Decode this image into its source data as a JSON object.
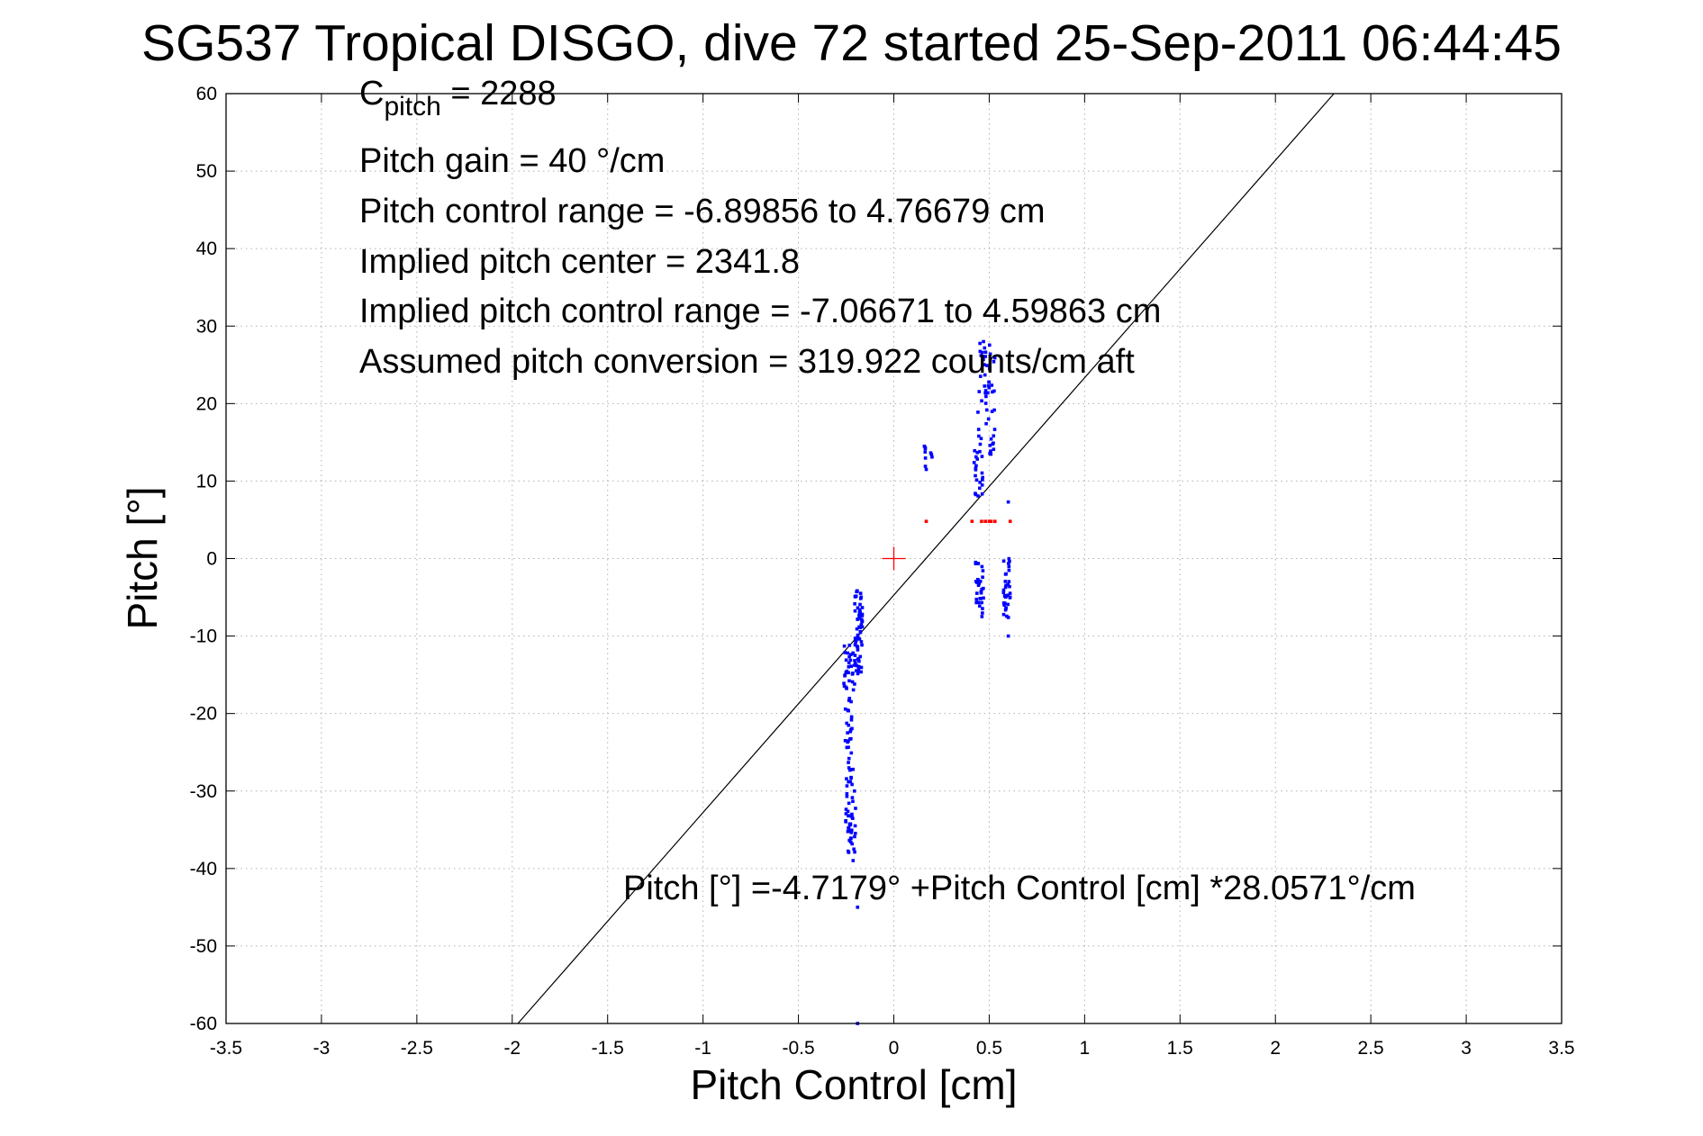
{
  "chart_data": {
    "type": "scatter",
    "title": "SG537 Tropical DISGO, dive 72 started 25-Sep-2011 06:44:45",
    "xlabel": "Pitch Control [cm]",
    "ylabel": "Pitch [°]",
    "xlim": [
      -3.5,
      3.5
    ],
    "ylim": [
      -60,
      60
    ],
    "xticks": [
      -3.5,
      -3,
      -2.5,
      -2,
      -1.5,
      -1,
      -0.5,
      0,
      0.5,
      1,
      1.5,
      2,
      2.5,
      3,
      3.5
    ],
    "xtick_labels": [
      "-3.5",
      "-3",
      "-2.5",
      "-2",
      "-1.5",
      "-1",
      "-0.5",
      "0",
      "0.5",
      "1",
      "1.5",
      "2",
      "2.5",
      "3",
      "3.5"
    ],
    "yticks": [
      -60,
      -50,
      -40,
      -30,
      -20,
      -10,
      0,
      10,
      20,
      30,
      40,
      50,
      60
    ],
    "ytick_labels": [
      "-60",
      "-50",
      "-40",
      "-30",
      "-20",
      "-10",
      "0",
      "10",
      "20",
      "30",
      "40",
      "50",
      "60"
    ],
    "grid": true,
    "annotations": {
      "c_pitch_prefix": "C",
      "c_pitch_sub": "pitch",
      "c_pitch_value": " = 2288",
      "lines": [
        "Pitch gain = 40 °/cm",
        "Pitch control range = -6.89856 to 4.76679 cm",
        "Implied pitch center = 2341.8",
        "Implied pitch control range = -7.06671 to 4.59863 cm",
        "Assumed pitch conversion = 319.922 counts/cm aft"
      ],
      "equation": "Pitch [°] =-4.7179° +Pitch Control [cm] *28.0571°/cm"
    },
    "fit_line": {
      "intercept": -4.7179,
      "slope": 28.0571,
      "color": "#000000"
    },
    "center_marker": {
      "x": 0,
      "y": 0,
      "color": "#ff0000"
    },
    "series": [
      {
        "color": "#0000ff",
        "clusters": [
          {
            "x_range": [
              -0.205,
              -0.165
            ],
            "y_range": [
              -15,
              -4
            ],
            "n": 60
          },
          {
            "x_range": [
              -0.265,
              -0.205
            ],
            "y_range": [
              -17,
              -11
            ],
            "n": 30
          },
          {
            "x_range": [
              -0.255,
              -0.215
            ],
            "y_range": [
              -37,
              -18
            ],
            "n": 50
          },
          {
            "x_range": [
              -0.24,
              -0.2
            ],
            "y_range": [
              -39,
              -27
            ],
            "n": 25
          },
          {
            "x_range": [
              0.42,
              0.47
            ],
            "y_range": [
              -7.5,
              0
            ],
            "n": 30
          },
          {
            "x_range": [
              0.575,
              0.61
            ],
            "y_range": [
              -8,
              0
            ],
            "n": 35
          },
          {
            "x_range": [
              0.42,
              0.47
            ],
            "y_range": [
              8,
              14
            ],
            "n": 20
          },
          {
            "x_range": [
              0.44,
              0.535
            ],
            "y_range": [
              13,
              28
            ],
            "n": 55
          },
          {
            "x_range": [
              0.155,
              0.205
            ],
            "y_range": [
              11.5,
              14.5
            ],
            "n": 8
          }
        ],
        "points": [
          [
            -0.19,
            -60
          ],
          [
            -0.19,
            -45
          ],
          [
            0.6,
            7.3
          ],
          [
            0.6,
            -10
          ],
          [
            0.47,
            28
          ],
          [
            0.16,
            14.5
          ],
          [
            0.17,
            11.5
          ]
        ]
      },
      {
        "color": "#ff0000",
        "points": [
          [
            0.17,
            4.8
          ],
          [
            0.41,
            4.8
          ],
          [
            0.46,
            4.8
          ],
          [
            0.48,
            4.8
          ],
          [
            0.5,
            4.8
          ],
          [
            0.51,
            4.8
          ],
          [
            0.53,
            4.8
          ],
          [
            0.61,
            4.8
          ]
        ]
      }
    ]
  }
}
